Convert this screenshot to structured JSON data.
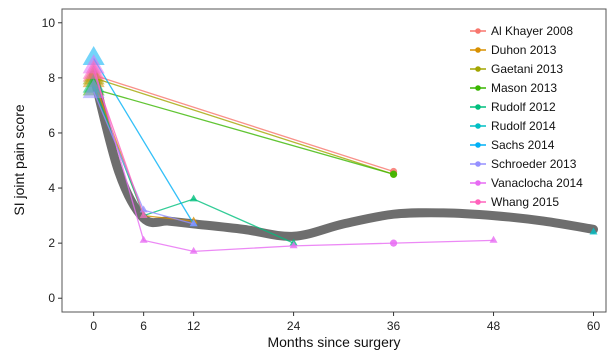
{
  "chart_data": {
    "type": "line",
    "title": "",
    "xlabel": "Months since surgery",
    "ylabel": "SI joint pain score",
    "x_ticks": [
      0,
      6,
      12,
      24,
      36,
      48,
      60
    ],
    "y_ticks": [
      0,
      2,
      4,
      6,
      8,
      10
    ],
    "xlim": [
      -3.8,
      61.5
    ],
    "ylim": [
      -0.5,
      10.5
    ],
    "grid": false,
    "legend_position": "top-right",
    "series": [
      {
        "name": "Al Khayer 2008",
        "color": "#F8766D",
        "x": [
          0,
          36
        ],
        "y": [
          8.1,
          4.6
        ]
      },
      {
        "name": "Duhon 2013",
        "color": "#D89000",
        "x": [
          0,
          6,
          12
        ],
        "y": [
          7.9,
          3.0,
          2.8
        ]
      },
      {
        "name": "Gaetani 2013",
        "color": "#A3A500",
        "x": [
          0,
          36
        ],
        "y": [
          8.0,
          4.5
        ]
      },
      {
        "name": "Mason 2013",
        "color": "#39B600",
        "x": [
          0,
          36
        ],
        "y": [
          7.6,
          4.5
        ]
      },
      {
        "name": "Rudolf 2012",
        "color": "#00BF7D",
        "x": [
          0,
          6,
          12,
          24
        ],
        "y": [
          7.7,
          3.0,
          3.6,
          2.0
        ]
      },
      {
        "name": "Rudolf 2014",
        "color": "#00BFC4",
        "x": [
          60
        ],
        "y": [
          2.4
        ]
      },
      {
        "name": "Sachs 2014",
        "color": "#00B0F6",
        "x": [
          0,
          12
        ],
        "y": [
          8.7,
          2.7
        ]
      },
      {
        "name": "Schroeder 2013",
        "color": "#9590FF",
        "x": [
          0,
          6,
          12
        ],
        "y": [
          7.5,
          3.2,
          2.7
        ]
      },
      {
        "name": "Vanaclocha 2014",
        "color": "#E76BF3",
        "x": [
          0,
          6,
          12,
          24,
          36,
          48
        ],
        "y": [
          8.4,
          2.1,
          1.7,
          1.9,
          2.0,
          2.1
        ]
      },
      {
        "name": "Whang 2015",
        "color": "#FF62BC",
        "x": [
          0,
          6
        ],
        "y": [
          8.2,
          3.0
        ]
      }
    ],
    "trend": {
      "color": "#666666",
      "x": [
        0,
        3,
        6,
        9,
        12,
        18,
        24,
        30,
        36,
        42,
        48,
        54,
        60
      ],
      "y": [
        8.1,
        4.6,
        2.9,
        2.8,
        2.7,
        2.5,
        2.25,
        2.7,
        3.05,
        3.1,
        3.0,
        2.8,
        2.5
      ]
    }
  }
}
